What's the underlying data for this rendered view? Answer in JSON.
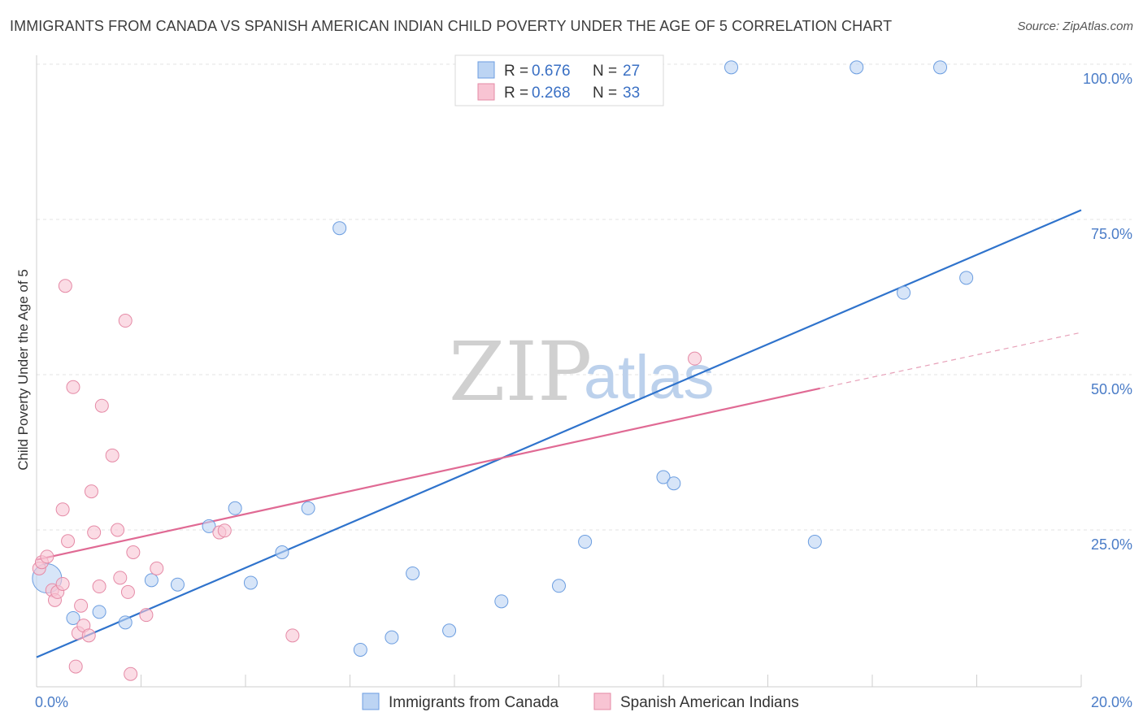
{
  "header": {
    "title": "IMMIGRANTS FROM CANADA VS SPANISH AMERICAN INDIAN CHILD POVERTY UNDER THE AGE OF 5 CORRELATION CHART",
    "source": "Source: ZipAtlas.com"
  },
  "watermark": {
    "zip": "ZIP",
    "atlas": "atlas"
  },
  "chart_data": {
    "type": "scatter",
    "title": "IMMIGRANTS FROM CANADA VS SPANISH AMERICAN INDIAN CHILD POVERTY UNDER THE AGE OF 5 CORRELATION CHART",
    "xlabel": "",
    "ylabel": "Child Poverty Under the Age of 5",
    "xlim": [
      0,
      20
    ],
    "ylim": [
      0,
      105
    ],
    "x_tick_labels": [
      "0.0%",
      "20.0%"
    ],
    "y_ticks": [
      25,
      50,
      75,
      100
    ],
    "y_tick_labels": [
      "25.0%",
      "50.0%",
      "75.0%",
      "100.0%"
    ],
    "grid": true,
    "legend_position": "top-center",
    "legend": [
      {
        "r_label": "R = ",
        "r_value": "0.676",
        "n_label": "N = ",
        "n_value": "27"
      },
      {
        "r_label": "R = ",
        "r_value": "0.268",
        "n_label": "N = ",
        "n_value": "33"
      }
    ],
    "series": [
      {
        "name": "Immigrants from Canada",
        "color": "#6b9de0",
        "fill": "#bcd4f3",
        "trend": {
          "x": [
            0,
            20
          ],
          "y": [
            4.5,
            76.5
          ],
          "dashed_extension": false
        },
        "points": [
          {
            "x": 0.2,
            "y": 17.2,
            "big": true
          },
          {
            "x": 0.7,
            "y": 10.8
          },
          {
            "x": 1.2,
            "y": 11.8
          },
          {
            "x": 1.7,
            "y": 10.1
          },
          {
            "x": 2.2,
            "y": 16.9
          },
          {
            "x": 2.7,
            "y": 16.2
          },
          {
            "x": 3.3,
            "y": 25.6
          },
          {
            "x": 3.8,
            "y": 28.5
          },
          {
            "x": 4.1,
            "y": 16.5
          },
          {
            "x": 4.7,
            "y": 21.4
          },
          {
            "x": 5.2,
            "y": 28.5
          },
          {
            "x": 5.8,
            "y": 73.6
          },
          {
            "x": 6.2,
            "y": 5.7
          },
          {
            "x": 6.8,
            "y": 7.7
          },
          {
            "x": 7.2,
            "y": 18.0
          },
          {
            "x": 7.9,
            "y": 8.8
          },
          {
            "x": 8.9,
            "y": 13.5
          },
          {
            "x": 10.0,
            "y": 16.0
          },
          {
            "x": 10.5,
            "y": 23.1
          },
          {
            "x": 12.0,
            "y": 33.5
          },
          {
            "x": 12.2,
            "y": 32.5
          },
          {
            "x": 13.3,
            "y": 99.5
          },
          {
            "x": 14.9,
            "y": 23.1
          },
          {
            "x": 15.7,
            "y": 99.5
          },
          {
            "x": 16.6,
            "y": 63.2
          },
          {
            "x": 17.3,
            "y": 99.5
          },
          {
            "x": 17.8,
            "y": 65.6
          }
        ]
      },
      {
        "name": "Spanish American Indians",
        "color": "#e58aa6",
        "fill": "#f8c4d3",
        "trend": {
          "x": [
            0,
            15
          ],
          "y": [
            20.2,
            47.8
          ],
          "dashed_to": [
            20,
            56.8
          ]
        },
        "points": [
          {
            "x": 0.05,
            "y": 18.8
          },
          {
            "x": 0.1,
            "y": 19.8
          },
          {
            "x": 0.2,
            "y": 20.7
          },
          {
            "x": 0.3,
            "y": 15.3
          },
          {
            "x": 0.35,
            "y": 13.7
          },
          {
            "x": 0.4,
            "y": 15.0
          },
          {
            "x": 0.5,
            "y": 28.3
          },
          {
            "x": 0.5,
            "y": 16.3
          },
          {
            "x": 0.55,
            "y": 64.3
          },
          {
            "x": 0.6,
            "y": 23.2
          },
          {
            "x": 0.7,
            "y": 48.0
          },
          {
            "x": 0.75,
            "y": 3.0
          },
          {
            "x": 0.8,
            "y": 8.4
          },
          {
            "x": 0.85,
            "y": 12.8
          },
          {
            "x": 0.9,
            "y": 9.6
          },
          {
            "x": 1.0,
            "y": 8.0
          },
          {
            "x": 1.05,
            "y": 31.2
          },
          {
            "x": 1.1,
            "y": 24.6
          },
          {
            "x": 1.2,
            "y": 15.9
          },
          {
            "x": 1.25,
            "y": 45.0
          },
          {
            "x": 1.45,
            "y": 37.0
          },
          {
            "x": 1.55,
            "y": 25.0
          },
          {
            "x": 1.6,
            "y": 17.3
          },
          {
            "x": 1.7,
            "y": 58.7
          },
          {
            "x": 1.75,
            "y": 15.0
          },
          {
            "x": 1.8,
            "y": 1.8
          },
          {
            "x": 1.85,
            "y": 21.4
          },
          {
            "x": 2.1,
            "y": 11.3
          },
          {
            "x": 2.3,
            "y": 18.8
          },
          {
            "x": 3.5,
            "y": 24.6
          },
          {
            "x": 3.6,
            "y": 24.9
          },
          {
            "x": 4.9,
            "y": 8.0
          },
          {
            "x": 12.6,
            "y": 52.6
          }
        ]
      }
    ]
  }
}
